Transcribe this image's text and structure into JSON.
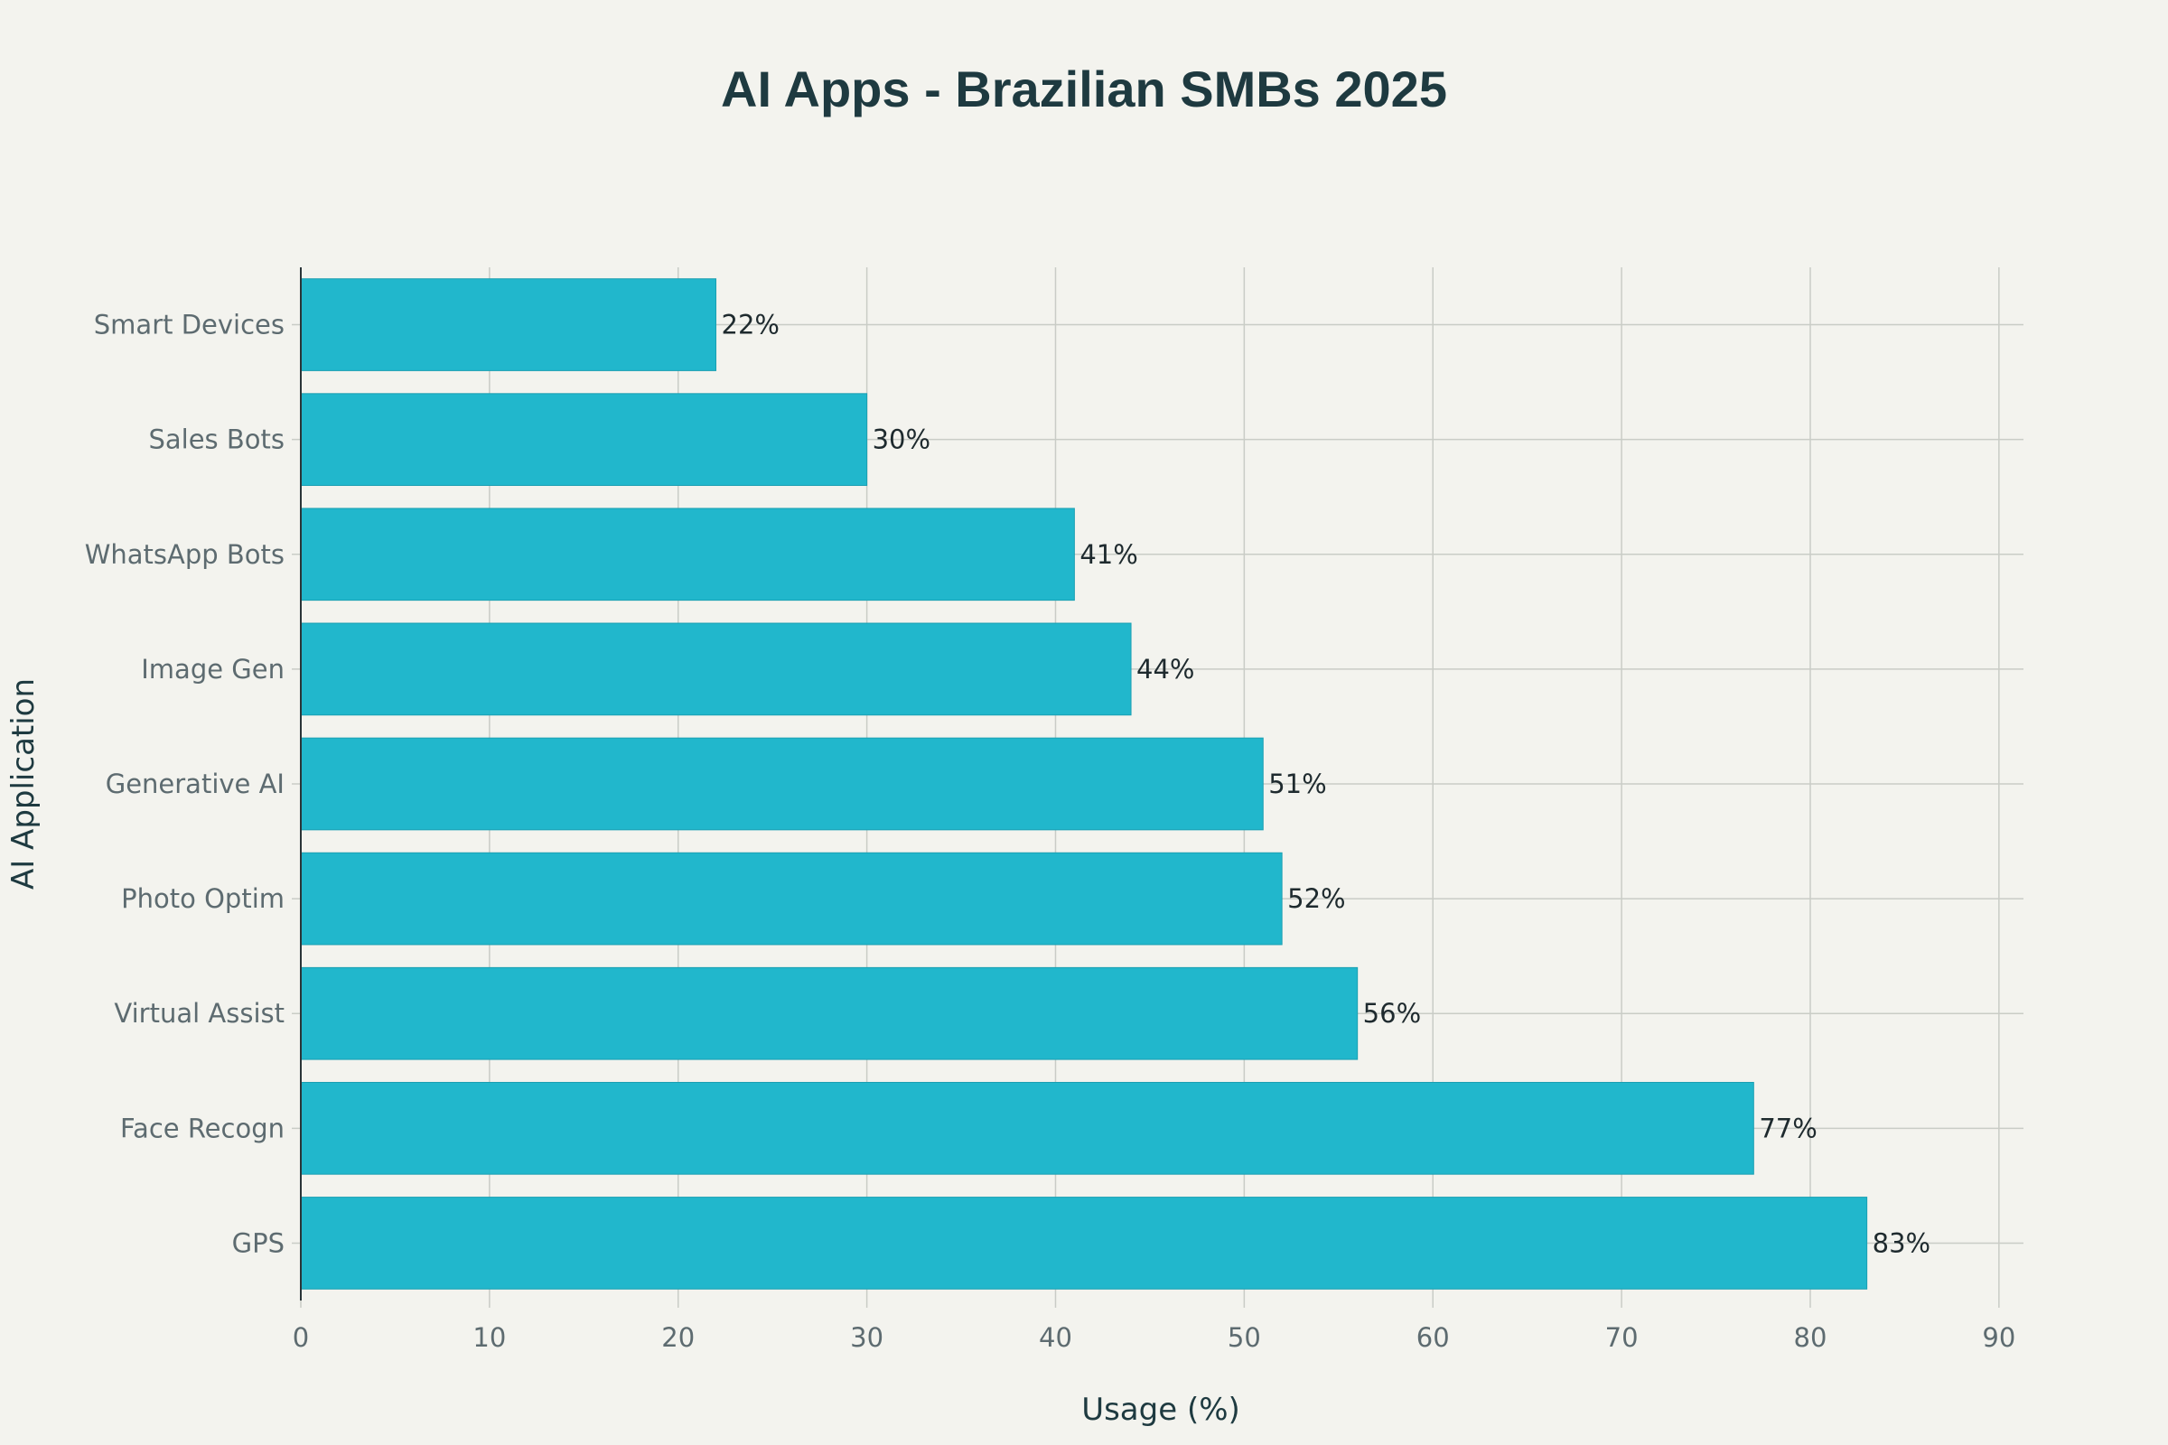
{
  "chart_data": {
    "type": "bar",
    "orientation": "horizontal",
    "title": "AI Apps - Brazilian SMBs 2025",
    "xlabel": "Usage (%)",
    "ylabel": "AI Application",
    "categories": [
      "Smart Devices",
      "Sales Bots",
      "WhatsApp Bots",
      "Image Gen",
      "Generative AI",
      "Photo Optim",
      "Virtual Assist",
      "Face Recogn",
      "GPS"
    ],
    "values": [
      22,
      30,
      41,
      44,
      51,
      52,
      56,
      77,
      83
    ],
    "data_labels": [
      "22%",
      "30%",
      "41%",
      "44%",
      "51%",
      "52%",
      "56%",
      "77%",
      "83%"
    ],
    "x_ticks": [
      0,
      10,
      20,
      30,
      40,
      50,
      60,
      70,
      80,
      90
    ],
    "xlim": [
      0,
      91.3
    ],
    "grid": true,
    "bar_color": "#21b7cc"
  }
}
